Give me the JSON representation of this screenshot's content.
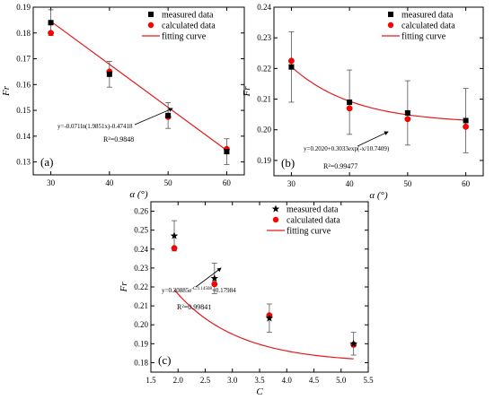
{
  "chart_data": [
    {
      "id": "a",
      "type": "scatter",
      "panel_label": "(a)",
      "xlabel": "α (°)",
      "ylabel": "Fr",
      "xlim": [
        27,
        63
      ],
      "ylim": [
        0.125,
        0.19
      ],
      "xticks": [
        30,
        40,
        50,
        60
      ],
      "xtick_labels": [
        "30",
        "40",
        "50",
        "60"
      ],
      "yticks": [
        0.13,
        0.14,
        0.15,
        0.16,
        0.17,
        0.18,
        0.19
      ],
      "ytick_labels": [
        "0.13",
        "0.14",
        "0.15",
        "0.16",
        "0.17",
        "0.18",
        "0.19"
      ],
      "x": [
        30,
        40,
        50,
        60
      ],
      "series": [
        {
          "name": "measured data",
          "marker": "square",
          "color": "#000000",
          "values": [
            0.184,
            0.164,
            0.148,
            0.134
          ],
          "errors": [
            0.005,
            0.005,
            0.005,
            0.005
          ]
        },
        {
          "name": "calculated data",
          "marker": "circle",
          "color": "#ff0000",
          "values": [
            0.18,
            0.165,
            0.1475,
            0.135
          ]
        }
      ],
      "fit": {
        "name": "fitting curve",
        "color": "#e41a1c",
        "kind": "linear",
        "x": [
          30,
          60
        ],
        "y": [
          0.1845,
          0.1345
        ]
      },
      "equation": "y=-0.071ln(1.9851x)-0.47418",
      "r2": "R²=0.9848",
      "legend": [
        "measured data",
        "calculated data",
        "fitting curve"
      ],
      "legend_position": "top-right"
    },
    {
      "id": "b",
      "type": "scatter",
      "panel_label": "(b)",
      "xlabel": "α (°)",
      "ylabel": "Fr",
      "xlim": [
        27,
        63
      ],
      "ylim": [
        0.185,
        0.24
      ],
      "xticks": [
        30,
        40,
        50,
        60
      ],
      "xtick_labels": [
        "30",
        "40",
        "50",
        "60"
      ],
      "yticks": [
        0.19,
        0.2,
        0.21,
        0.22,
        0.23,
        0.24
      ],
      "ytick_labels": [
        "0.19",
        "0.20",
        "0.21",
        "0.22",
        "0.23",
        "0.24"
      ],
      "x": [
        30,
        40,
        50,
        60
      ],
      "series": [
        {
          "name": "measured data",
          "marker": "square",
          "color": "#000000",
          "values": [
            0.2205,
            0.209,
            0.2055,
            0.203
          ],
          "errors": [
            0.0115,
            0.0105,
            0.0105,
            0.0105
          ]
        },
        {
          "name": "calculated data",
          "marker": "circle",
          "color": "#ff0000",
          "values": [
            0.2225,
            0.207,
            0.2035,
            0.201
          ]
        }
      ],
      "fit": {
        "name": "fitting curve",
        "color": "#e41a1c",
        "kind": "exp",
        "a": 0.202,
        "b": 0.3033,
        "c": 10.7409,
        "x_range": [
          30,
          60
        ]
      },
      "equation": "y=0.2020+0.3033exp(-x/10.7409)",
      "r2": "R²=0.99477",
      "legend": [
        "measured data",
        "calculated data",
        "fitting curve"
      ],
      "legend_position": "top-right"
    },
    {
      "id": "c",
      "type": "scatter",
      "panel_label": "(c)",
      "xlabel": "C",
      "ylabel": "Fr",
      "xlim": [
        1.5,
        5.5
      ],
      "ylim": [
        0.175,
        0.265
      ],
      "xticks": [
        1.5,
        2.0,
        2.5,
        3.0,
        3.5,
        4.0,
        4.5,
        5.0,
        5.5
      ],
      "xtick_labels": [
        "1.5",
        "2.0",
        "2.5",
        "3.0",
        "3.5",
        "4.0",
        "4.5",
        "5.0",
        "5.5"
      ],
      "yticks": [
        0.18,
        0.19,
        0.2,
        0.21,
        0.22,
        0.23,
        0.24,
        0.25,
        0.26
      ],
      "ytick_labels": [
        "0.18",
        "0.19",
        "0.20",
        "0.21",
        "0.22",
        "0.23",
        "0.24",
        "0.25",
        "0.26"
      ],
      "x": [
        1.93,
        2.67,
        3.68,
        5.23
      ],
      "series": [
        {
          "name": "measured data",
          "marker": "star",
          "color": "#000000",
          "values": [
            0.247,
            0.2245,
            0.2035,
            0.19
          ],
          "errors": [
            0.008,
            0.008,
            0.0075,
            0.006
          ]
        },
        {
          "name": "calculated data",
          "marker": "circle",
          "color": "#ff0000",
          "values": [
            0.2405,
            0.2215,
            0.205,
            0.1895
          ]
        }
      ],
      "fit": {
        "name": "fitting curve",
        "color": "#e41a1c",
        "kind": "exp",
        "a": 0.17984,
        "b": 0.20885,
        "c": 1.14508,
        "x_range": [
          1.93,
          5.23
        ]
      },
      "equation_base": "y=0.20885e",
      "equation_exp": "-C/1.14508",
      "equation_tail": "+0.17984",
      "r2": "R²=0.99841",
      "legend": [
        "measured data",
        "calculated data",
        "fitting curve"
      ],
      "legend_position": "top-right"
    }
  ]
}
